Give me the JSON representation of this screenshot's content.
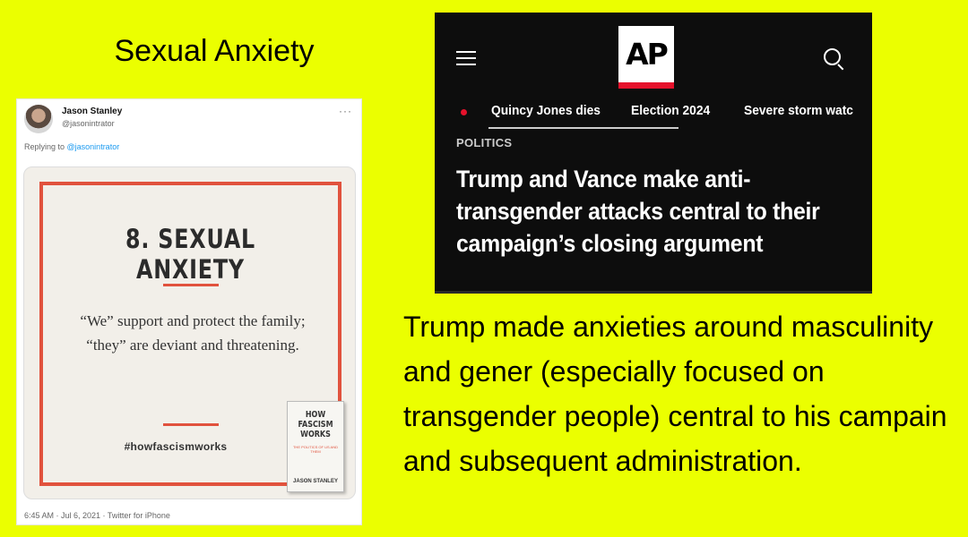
{
  "slide": {
    "title": "Sexual Anxiety",
    "body": "Trump made anxieties around masculinity and gener (especially focused on transgender people) central to his campain and subsequent administration."
  },
  "tweet": {
    "author_name": "Jason Stanley",
    "author_handle": "@jasonintrator",
    "more_label": "···",
    "reply_prefix": "Replying to ",
    "reply_handle": "@jasonintrator",
    "card": {
      "heading": "8. SEXUAL ANXIETY",
      "quote": "“We” support and protect the family; “they” are deviant and threatening.",
      "hashtag": "#howfascismworks",
      "book_title_line1": "HOW",
      "book_title_line2": "FASCISM",
      "book_title_line3": "WORKS",
      "book_subtitle": "THE POLITICS OF US AND THEM",
      "book_author": "JASON STANLEY",
      "accent_color": "#e1523d"
    },
    "meta": "6:45 AM · Jul 6, 2021 · Twitter for iPhone"
  },
  "ap": {
    "logo": "AP",
    "brand_color": "#e5112b",
    "nav": [
      "Quincy Jones dies",
      "Election 2024",
      "Severe storm watc"
    ],
    "section": "POLITICS",
    "headline": "Trump and Vance make anti-transgender attacks central to their campaign’s closing argument",
    "icons": {
      "menu": "hamburger-menu-icon",
      "search": "search-icon"
    }
  },
  "colors": {
    "background": "#ebff00"
  }
}
